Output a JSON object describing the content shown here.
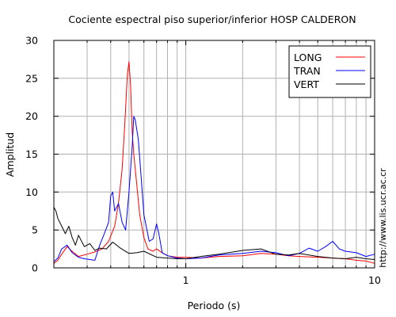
{
  "chart_data": {
    "type": "line",
    "title": "Cociente espectral piso superior/inferior  HOSP CALDERON",
    "xlabel": "Periodo (s)",
    "ylabel": "Amplitud",
    "xscale": "log",
    "xlim": [
      0.2,
      10
    ],
    "ylim": [
      0,
      30
    ],
    "x_ticks": [
      {
        "value": 1,
        "label": "1"
      },
      {
        "value": 10,
        "label": "10"
      }
    ],
    "y_ticks": [
      {
        "value": 0,
        "label": "0"
      },
      {
        "value": 5,
        "label": "5"
      },
      {
        "value": 10,
        "label": "10"
      },
      {
        "value": 15,
        "label": "15"
      },
      {
        "value": 20,
        "label": "20"
      },
      {
        "value": 25,
        "label": "25"
      },
      {
        "value": 30,
        "label": "30"
      }
    ],
    "grid": true,
    "legend_position": "top-right",
    "series": [
      {
        "name": "LONG",
        "color": "#ff0000",
        "x": [
          0.2,
          0.21,
          0.22,
          0.235,
          0.25,
          0.27,
          0.3,
          0.33,
          0.36,
          0.39,
          0.42,
          0.44,
          0.46,
          0.475,
          0.49,
          0.5,
          0.51,
          0.52,
          0.53,
          0.55,
          0.57,
          0.6,
          0.63,
          0.67,
          0.7,
          0.75,
          0.8,
          0.9,
          1.0,
          1.2,
          1.5,
          2.0,
          2.5,
          3.0,
          3.5,
          4.0,
          5.0,
          6.0,
          7.0,
          8.0,
          9.0,
          10.0
        ],
        "y": [
          0.6,
          1.0,
          1.8,
          2.8,
          2.2,
          1.5,
          1.8,
          2.1,
          2.5,
          3.5,
          5.5,
          8.5,
          13.0,
          19.0,
          25.5,
          27.2,
          24.0,
          18.0,
          15.0,
          11.0,
          7.0,
          4.0,
          2.5,
          2.2,
          2.5,
          2.0,
          1.6,
          1.4,
          1.4,
          1.3,
          1.5,
          1.6,
          1.9,
          1.8,
          1.6,
          1.5,
          1.4,
          1.3,
          1.2,
          1.0,
          0.9,
          0.6
        ]
      },
      {
        "name": "TRAN",
        "color": "#0000ff",
        "x": [
          0.2,
          0.21,
          0.22,
          0.235,
          0.25,
          0.27,
          0.29,
          0.31,
          0.33,
          0.35,
          0.37,
          0.39,
          0.4,
          0.41,
          0.42,
          0.44,
          0.46,
          0.48,
          0.5,
          0.52,
          0.53,
          0.54,
          0.56,
          0.58,
          0.6,
          0.64,
          0.67,
          0.7,
          0.72,
          0.75,
          0.8,
          0.9,
          1.0,
          1.2,
          1.5,
          2.0,
          2.5,
          3.0,
          3.5,
          4.0,
          4.5,
          5.0,
          5.5,
          6.0,
          6.5,
          7.0,
          8.0,
          9.0,
          10.0
        ],
        "y": [
          0.8,
          1.3,
          2.5,
          3.0,
          2.0,
          1.4,
          1.2,
          1.1,
          1.0,
          3.0,
          4.5,
          6.0,
          9.5,
          10.0,
          7.5,
          8.5,
          6.0,
          5.0,
          10.0,
          16.0,
          20.0,
          19.5,
          17.0,
          12.0,
          7.0,
          3.5,
          3.8,
          5.8,
          4.5,
          2.0,
          1.6,
          1.3,
          1.2,
          1.3,
          1.7,
          1.9,
          2.2,
          2.0,
          1.6,
          1.9,
          2.6,
          2.2,
          2.8,
          3.5,
          2.5,
          2.2,
          2.0,
          1.5,
          1.8
        ]
      },
      {
        "name": "VERT",
        "color": "#000000",
        "x": [
          0.2,
          0.205,
          0.21,
          0.22,
          0.23,
          0.24,
          0.25,
          0.26,
          0.27,
          0.29,
          0.31,
          0.33,
          0.35,
          0.38,
          0.41,
          0.45,
          0.5,
          0.55,
          0.6,
          0.7,
          0.8,
          0.9,
          1.0,
          1.2,
          1.5,
          2.0,
          2.5,
          3.0,
          3.5,
          4.0,
          5.0,
          6.0,
          7.0,
          8.0,
          9.0,
          10.0
        ],
        "y": [
          8.0,
          7.5,
          6.5,
          5.5,
          4.5,
          5.5,
          4.0,
          3.0,
          4.3,
          2.8,
          3.2,
          2.3,
          2.6,
          2.5,
          3.4,
          2.6,
          1.9,
          2.0,
          2.2,
          1.4,
          1.3,
          1.2,
          1.2,
          1.5,
          1.8,
          2.3,
          2.5,
          1.8,
          1.7,
          1.9,
          1.5,
          1.3,
          1.2,
          1.4,
          1.2,
          1.1
        ]
      }
    ]
  },
  "watermark": "http://www.lis.ucr.ac.cr"
}
